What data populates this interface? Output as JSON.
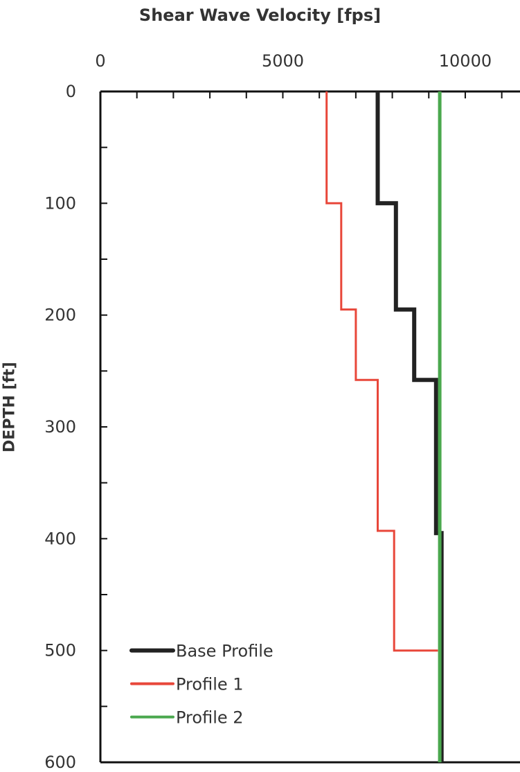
{
  "chart_data": {
    "type": "line",
    "title": "",
    "xlabel": "Shear Wave Velocity [fps]",
    "ylabel": "DEPTH [ft]",
    "xlim": [
      0,
      11500
    ],
    "ylim": [
      0,
      600
    ],
    "y_inverted": true,
    "x_axis_position": "top",
    "x_ticks": [
      0,
      5000,
      10000
    ],
    "y_ticks": [
      0,
      100,
      200,
      300,
      400,
      500,
      600
    ],
    "grid": false,
    "legend_position": "bottom-left",
    "series": [
      {
        "name": "Base Profile",
        "color": "#222222",
        "x": [
          7600,
          7600,
          8100,
          8100,
          8600,
          8600,
          9200,
          9200,
          9350,
          9350
        ],
        "y": [
          0,
          100,
          100,
          195,
          195,
          258,
          258,
          395,
          395,
          600
        ]
      },
      {
        "name": "Profile 1",
        "color": "#e8473a",
        "x": [
          6200,
          6200,
          6600,
          6600,
          7000,
          7000,
          7600,
          7600,
          8050,
          8050,
          9250
        ],
        "y": [
          0,
          100,
          100,
          195,
          195,
          258,
          258,
          393,
          393,
          500,
          500
        ]
      },
      {
        "name": "Profile 2",
        "color": "#4aa84e",
        "x": [
          9300,
          9300
        ],
        "y": [
          0,
          600
        ]
      }
    ]
  }
}
